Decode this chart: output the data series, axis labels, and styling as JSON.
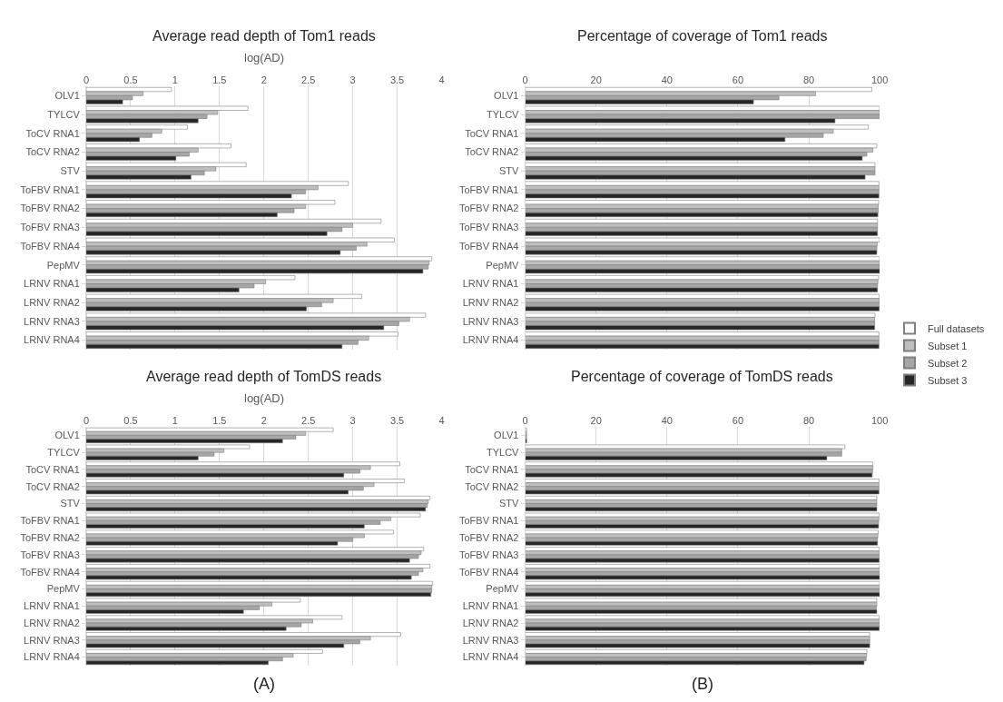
{
  "chart_data": [
    {
      "type": "bar",
      "orientation": "horizontal",
      "title": "Average read depth of Tom1 reads",
      "xlabel": "log(AD)",
      "categories": [
        "OLV1",
        "TYLCV",
        "ToCV RNA1",
        "ToCV RNA2",
        "STV",
        "ToFBV RNA1",
        "ToFBV RNA2",
        "ToFBV RNA3",
        "ToFBV RNA4",
        "PepMV",
        "LRNV RNA1",
        "LRNV RNA2",
        "LRNV RNA3",
        "LRNV RNA4"
      ],
      "xlim": [
        0,
        4
      ],
      "xticks": [
        0,
        0.5,
        1,
        1.5,
        2,
        2.5,
        3,
        3.5,
        4
      ],
      "grid": "x",
      "series": [
        {
          "color": "#ffffff",
          "values": [
            0.96,
            1.82,
            1.14,
            1.63,
            1.8,
            2.95,
            2.8,
            3.32,
            3.47,
            3.89,
            2.35,
            3.1,
            3.82,
            3.51
          ]
        },
        {
          "color": "#bfbfbf",
          "values": [
            0.64,
            1.48,
            0.85,
            1.26,
            1.46,
            2.61,
            2.47,
            3.0,
            3.16,
            3.86,
            2.02,
            2.78,
            3.64,
            3.18
          ]
        },
        {
          "color": "#a6a6a6",
          "values": [
            0.52,
            1.36,
            0.74,
            1.16,
            1.33,
            2.47,
            2.34,
            2.88,
            3.04,
            3.85,
            1.89,
            2.65,
            3.52,
            3.06
          ]
        },
        {
          "color": "#262626",
          "values": [
            0.41,
            1.26,
            0.6,
            1.01,
            1.18,
            2.31,
            2.15,
            2.71,
            2.86,
            3.79,
            1.72,
            2.48,
            3.35,
            2.88
          ]
        }
      ]
    },
    {
      "type": "bar",
      "orientation": "horizontal",
      "title": "Percentage of coverage of Tom1 reads",
      "categories": [
        "OLV1",
        "TYLCV",
        "ToCV RNA1",
        "ToCV RNA2",
        "STV",
        "ToFBV RNA1",
        "ToFBV RNA2",
        "ToFBV RNA3",
        "ToFBV RNA4",
        "PepMV",
        "LRNV RNA1",
        "LRNV RNA2",
        "LRNV RNA3",
        "LRNV RNA4"
      ],
      "xlim": [
        0,
        100
      ],
      "xticks": [
        0,
        20,
        40,
        60,
        80,
        100
      ],
      "grid": "x",
      "legend": "right",
      "series": [
        {
          "name": "Full datasets",
          "color": "#ffffff",
          "values": [
            97.8,
            100,
            96.8,
            99.2,
            98.7,
            99.8,
            99.7,
            99.4,
            100,
            100,
            99.7,
            99.9,
            98.7,
            99.8
          ]
        },
        {
          "name": "Subset 1",
          "color": "#bfbfbf",
          "values": [
            81.9,
            100,
            86.9,
            98.1,
            98.7,
            99.8,
            99.6,
            99.4,
            99.3,
            100,
            99.5,
            99.9,
            98.6,
            99.8
          ]
        },
        {
          "name": "Subset 2",
          "color": "#a6a6a6",
          "values": [
            71.6,
            100,
            84.1,
            96.4,
            98.7,
            99.8,
            99.6,
            99.4,
            99.2,
            100,
            99.4,
            99.9,
            98.6,
            99.8
          ]
        },
        {
          "name": "Subset 3",
          "color": "#262626",
          "values": [
            64.4,
            87.4,
            73.3,
            95.1,
            95.9,
            99.8,
            99.5,
            99.4,
            99.2,
            100,
            99.4,
            99.9,
            98.6,
            99.8
          ]
        }
      ]
    },
    {
      "type": "bar",
      "orientation": "horizontal",
      "title": "Average read depth of TomDS reads",
      "xlabel": "log(AD)",
      "annotations": [
        "(A)"
      ],
      "categories": [
        "OLV1",
        "TYLCV",
        "ToCV RNA1",
        "ToCV RNA2",
        "STV",
        "ToFBV RNA1",
        "ToFBV RNA2",
        "ToFBV RNA3",
        "ToFBV RNA4",
        "PepMV",
        "LRNV RNA1",
        "LRNV RNA2",
        "LRNV RNA3",
        "LRNV RNA4"
      ],
      "xlim": [
        0,
        4
      ],
      "xticks": [
        0,
        0.5,
        1,
        1.5,
        2,
        2.5,
        3,
        3.5,
        4
      ],
      "grid": "x",
      "series": [
        {
          "color": "#ffffff",
          "values": [
            2.78,
            1.84,
            3.53,
            3.58,
            3.87,
            3.76,
            3.46,
            3.8,
            3.87,
            3.9,
            2.41,
            2.88,
            3.54,
            2.66
          ]
        },
        {
          "color": "#bfbfbf",
          "values": [
            2.47,
            1.55,
            3.2,
            3.24,
            3.85,
            3.43,
            3.13,
            3.77,
            3.79,
            3.89,
            2.09,
            2.55,
            3.2,
            2.33
          ]
        },
        {
          "color": "#a6a6a6",
          "values": [
            2.36,
            1.44,
            3.08,
            3.12,
            3.84,
            3.31,
            3.0,
            3.74,
            3.74,
            3.89,
            1.95,
            2.42,
            3.08,
            2.21
          ]
        },
        {
          "color": "#262626",
          "values": [
            2.21,
            1.26,
            2.9,
            2.95,
            3.82,
            3.13,
            2.83,
            3.64,
            3.66,
            3.88,
            1.77,
            2.25,
            2.9,
            2.05
          ]
        }
      ]
    },
    {
      "type": "bar",
      "orientation": "horizontal",
      "title": "Percentage of coverage of TomDS reads",
      "annotations": [
        "(B)"
      ],
      "categories": [
        "OLV1",
        "TYLCV",
        "ToCV RNA1",
        "ToCV RNA2",
        "STV",
        "ToFBV RNA1",
        "ToFBV RNA2",
        "ToFBV RNA3",
        "ToFBV RNA4",
        "PepMV",
        "LRNV RNA1",
        "LRNV RNA2",
        "LRNV RNA3",
        "LRNV RNA4"
      ],
      "xlim": [
        0,
        100
      ],
      "xticks": [
        0,
        20,
        40,
        60,
        80,
        100
      ],
      "grid": "x",
      "series": [
        {
          "color": "#ffffff",
          "values": [
            0.4,
            90.2,
            98.1,
            99.8,
            99.2,
            99.9,
            99.6,
            99.9,
            100,
            100,
            99.2,
            99.9,
            97.2,
            96.4
          ]
        },
        {
          "color": "#bfbfbf",
          "values": [
            0.4,
            89.3,
            98.1,
            99.8,
            99.2,
            99.8,
            99.5,
            99.9,
            100,
            100,
            99.2,
            99.9,
            97.2,
            96.3
          ]
        },
        {
          "color": "#a6a6a6",
          "values": [
            0.4,
            89.3,
            98.0,
            99.8,
            99.2,
            99.7,
            99.4,
            99.9,
            100,
            100,
            99.1,
            99.9,
            97.2,
            96.2
          ]
        },
        {
          "color": "#262626",
          "values": [
            0.4,
            85.1,
            97.9,
            99.8,
            99.2,
            99.7,
            99.4,
            99.9,
            100,
            100,
            99.2,
            99.9,
            97.2,
            95.6
          ]
        }
      ]
    }
  ]
}
